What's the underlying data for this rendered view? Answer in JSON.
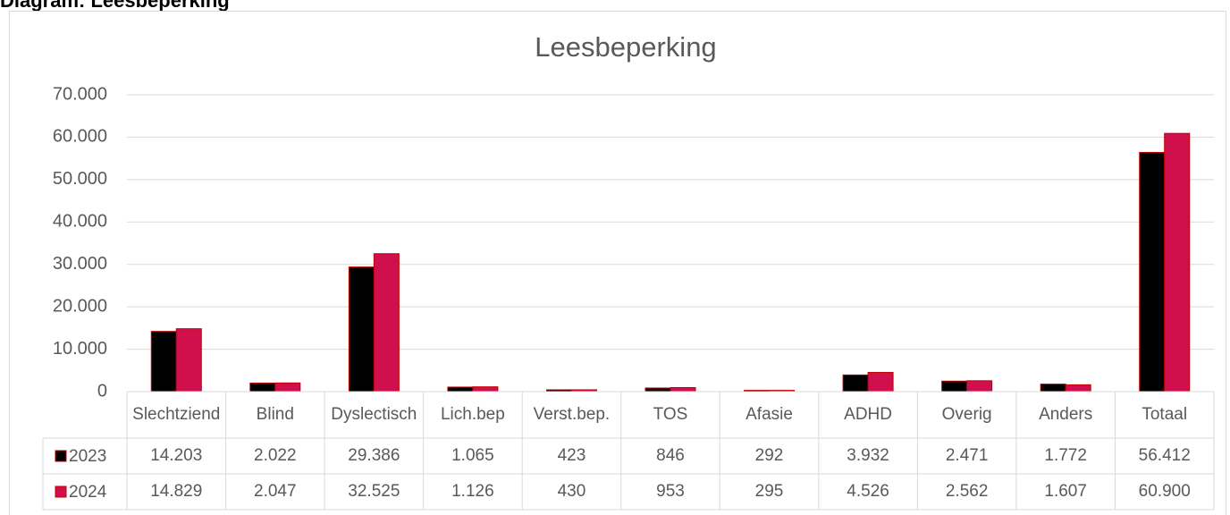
{
  "heading": "Diagram: Leesbeperking",
  "chart_data": {
    "type": "bar",
    "title": "Leesbeperking",
    "categories": [
      "Slechtziend",
      "Blind",
      "Dyslectisch",
      "Lich.bep",
      "Verst.bep.",
      "TOS",
      "Afasie",
      "ADHD",
      "Overig",
      "Anders",
      "Totaal"
    ],
    "series": [
      {
        "name": "2023",
        "color": "#000000",
        "values": [
          14203,
          2022,
          29386,
          1065,
          423,
          846,
          292,
          3932,
          2471,
          1772,
          56412
        ],
        "value_labels": [
          "14.203",
          "2.022",
          "29.386",
          "1.065",
          "423",
          "846",
          "292",
          "3.932",
          "2.471",
          "1.772",
          "56.412"
        ]
      },
      {
        "name": "2024",
        "color": "#d0104c",
        "values": [
          14829,
          2047,
          32525,
          1126,
          430,
          953,
          295,
          4526,
          2562,
          1607,
          60900
        ],
        "value_labels": [
          "14.829",
          "2.047",
          "32.525",
          "1.126",
          "430",
          "953",
          "295",
          "4.526",
          "2.562",
          "1.607",
          "60.900"
        ]
      }
    ],
    "ylim": [
      0,
      70000
    ],
    "yticks": [
      0,
      {
        "value": 10000,
        "label": "10.000"
      },
      {
        "value": 20000,
        "label": "20.000"
      },
      {
        "value": 30000,
        "label": "30.000"
      },
      {
        "value": 40000,
        "label": "40.000"
      },
      {
        "value": 50000,
        "label": "50.000"
      },
      {
        "value": 60000,
        "label": "60.000"
      },
      {
        "value": 70000,
        "label": "70.000"
      }
    ],
    "grid": true
  }
}
